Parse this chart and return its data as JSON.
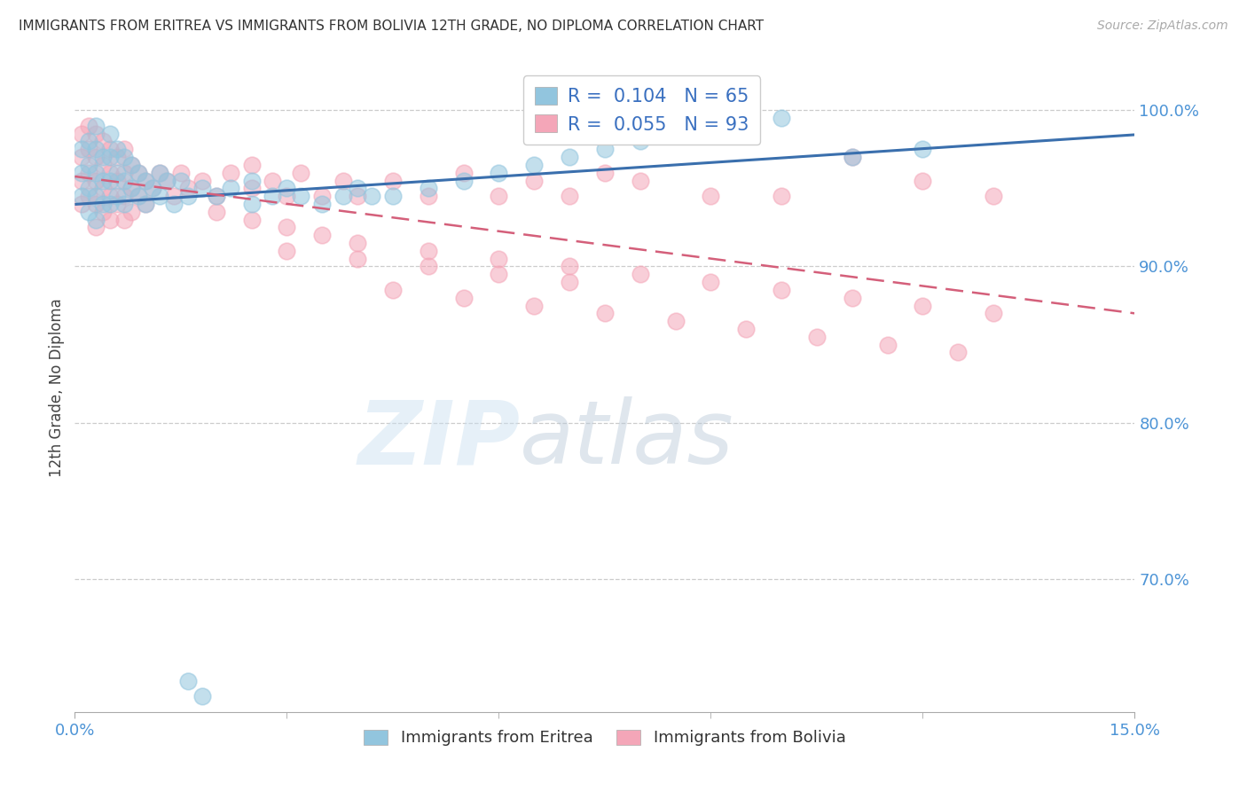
{
  "title": "IMMIGRANTS FROM ERITREA VS IMMIGRANTS FROM BOLIVIA 12TH GRADE, NO DIPLOMA CORRELATION CHART",
  "source": "Source: ZipAtlas.com",
  "ylabel": "12th Grade, No Diploma",
  "R_eritrea": 0.104,
  "N_eritrea": 65,
  "R_bolivia": 0.055,
  "N_bolivia": 93,
  "color_eritrea": "#92c5de",
  "color_bolivia": "#f4a6b8",
  "line_color_eritrea": "#3a6fad",
  "line_color_bolivia": "#d45f7a",
  "watermark_zip": "ZIP",
  "watermark_atlas": "atlas",
  "xlim": [
    0.0,
    0.15
  ],
  "ylim": [
    0.615,
    1.03
  ],
  "ytick_values": [
    0.7,
    0.8,
    0.9,
    1.0
  ],
  "ytick_labels": [
    "70.0%",
    "80.0%",
    "90.0%",
    "100.0%"
  ],
  "legend_eritrea": "Immigrants from Eritrea",
  "legend_bolivia": "Immigrants from Bolivia",
  "eritrea_x": [
    0.001,
    0.001,
    0.001,
    0.002,
    0.002,
    0.002,
    0.002,
    0.003,
    0.003,
    0.003,
    0.003,
    0.003,
    0.004,
    0.004,
    0.004,
    0.005,
    0.005,
    0.005,
    0.005,
    0.006,
    0.006,
    0.006,
    0.007,
    0.007,
    0.007,
    0.008,
    0.008,
    0.009,
    0.009,
    0.01,
    0.01,
    0.011,
    0.012,
    0.012,
    0.013,
    0.014,
    0.015,
    0.016,
    0.018,
    0.02,
    0.022,
    0.025,
    0.025,
    0.028,
    0.03,
    0.032,
    0.035,
    0.038,
    0.04,
    0.042,
    0.045,
    0.05,
    0.055,
    0.06,
    0.065,
    0.07,
    0.075,
    0.08,
    0.085,
    0.09,
    0.1,
    0.11,
    0.12,
    0.016,
    0.018
  ],
  "eritrea_y": [
    0.975,
    0.96,
    0.945,
    0.98,
    0.965,
    0.95,
    0.935,
    0.99,
    0.975,
    0.96,
    0.945,
    0.93,
    0.97,
    0.955,
    0.94,
    0.985,
    0.97,
    0.955,
    0.94,
    0.975,
    0.96,
    0.945,
    0.97,
    0.955,
    0.94,
    0.965,
    0.95,
    0.96,
    0.945,
    0.955,
    0.94,
    0.95,
    0.96,
    0.945,
    0.955,
    0.94,
    0.955,
    0.945,
    0.95,
    0.945,
    0.95,
    0.955,
    0.94,
    0.945,
    0.95,
    0.945,
    0.94,
    0.945,
    0.95,
    0.945,
    0.945,
    0.95,
    0.955,
    0.96,
    0.965,
    0.97,
    0.975,
    0.98,
    0.985,
    0.99,
    0.995,
    0.97,
    0.975,
    0.635,
    0.625
  ],
  "bolivia_x": [
    0.001,
    0.001,
    0.001,
    0.001,
    0.002,
    0.002,
    0.002,
    0.002,
    0.003,
    0.003,
    0.003,
    0.003,
    0.003,
    0.004,
    0.004,
    0.004,
    0.004,
    0.005,
    0.005,
    0.005,
    0.005,
    0.006,
    0.006,
    0.006,
    0.007,
    0.007,
    0.007,
    0.007,
    0.008,
    0.008,
    0.008,
    0.009,
    0.009,
    0.01,
    0.01,
    0.011,
    0.012,
    0.013,
    0.014,
    0.015,
    0.016,
    0.018,
    0.02,
    0.022,
    0.025,
    0.025,
    0.028,
    0.03,
    0.032,
    0.035,
    0.038,
    0.04,
    0.045,
    0.05,
    0.055,
    0.06,
    0.065,
    0.07,
    0.075,
    0.08,
    0.09,
    0.1,
    0.11,
    0.12,
    0.13,
    0.03,
    0.04,
    0.05,
    0.06,
    0.07,
    0.045,
    0.055,
    0.065,
    0.075,
    0.085,
    0.095,
    0.105,
    0.115,
    0.125,
    0.02,
    0.025,
    0.03,
    0.035,
    0.04,
    0.05,
    0.06,
    0.07,
    0.08,
    0.09,
    0.1,
    0.11,
    0.12,
    0.13
  ],
  "bolivia_y": [
    0.985,
    0.97,
    0.955,
    0.94,
    0.99,
    0.975,
    0.96,
    0.945,
    0.985,
    0.97,
    0.955,
    0.94,
    0.925,
    0.98,
    0.965,
    0.95,
    0.935,
    0.975,
    0.96,
    0.945,
    0.93,
    0.97,
    0.955,
    0.94,
    0.975,
    0.96,
    0.945,
    0.93,
    0.965,
    0.95,
    0.935,
    0.96,
    0.945,
    0.955,
    0.94,
    0.95,
    0.96,
    0.955,
    0.945,
    0.96,
    0.95,
    0.955,
    0.945,
    0.96,
    0.965,
    0.95,
    0.955,
    0.945,
    0.96,
    0.945,
    0.955,
    0.945,
    0.955,
    0.945,
    0.96,
    0.945,
    0.955,
    0.945,
    0.96,
    0.955,
    0.945,
    0.945,
    0.97,
    0.955,
    0.945,
    0.91,
    0.905,
    0.9,
    0.895,
    0.89,
    0.885,
    0.88,
    0.875,
    0.87,
    0.865,
    0.86,
    0.855,
    0.85,
    0.845,
    0.935,
    0.93,
    0.925,
    0.92,
    0.915,
    0.91,
    0.905,
    0.9,
    0.895,
    0.89,
    0.885,
    0.88,
    0.875,
    0.87
  ]
}
